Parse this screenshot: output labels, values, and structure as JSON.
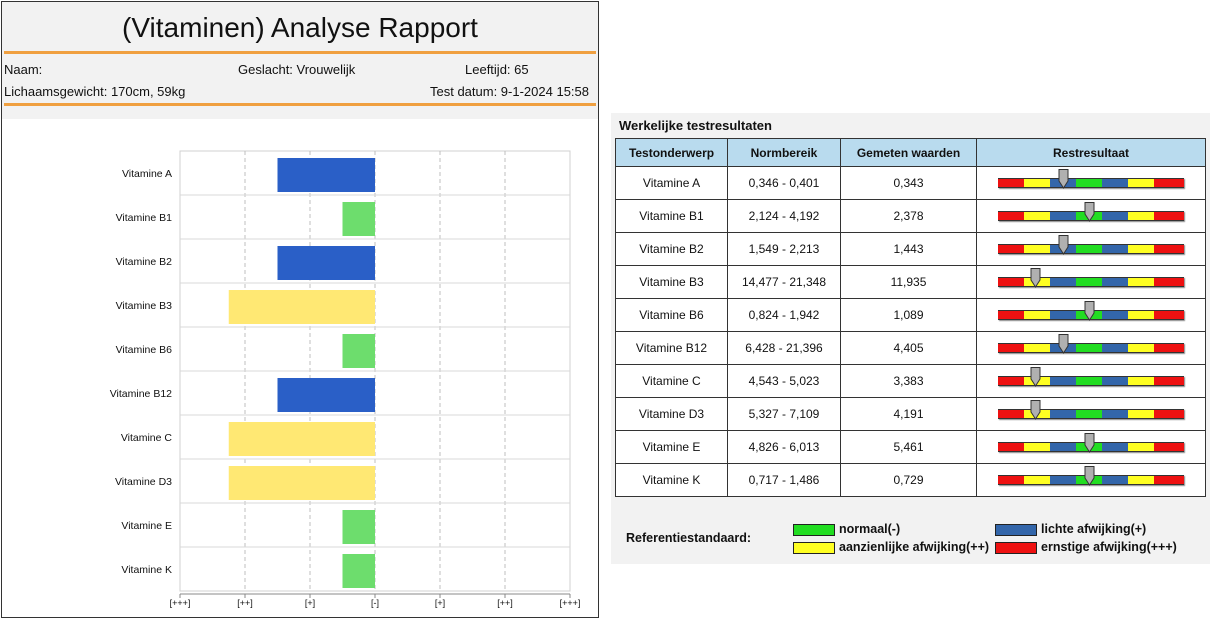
{
  "report": {
    "title": "(Vitaminen) Analyse Rapport",
    "name_label": "Naam:",
    "gender_label": "Geslacht: Vrouwelijk",
    "age_label": "Leeftijd: 65",
    "body_label": "Lichaamsgewicht: 170cm, 59kg",
    "test_date_label": "Test datum: 9-1-2024 15:58"
  },
  "colors": {
    "deviation_mild": "#2a5fc7",
    "normal": "#6ddd6d",
    "deviation_considerable": "#ffe873",
    "orange_rule": "#f0a040",
    "header_blue": "#b9dbee",
    "gauge_red": "#ee1111",
    "gauge_yellow": "#ffff22",
    "gauge_blue": "#3366aa",
    "gauge_green": "#22dd22"
  },
  "chart_data": {
    "type": "bar",
    "orientation": "horizontal",
    "categories": [
      "Vitamine A",
      "Vitamine B1",
      "Vitamine B2",
      "Vitamine B3",
      "Vitamine B6",
      "Vitamine B12",
      "Vitamine C",
      "Vitamine D3",
      "Vitamine E",
      "Vitamine K"
    ],
    "x_ticks": [
      "[+++]",
      "[++]",
      "[+]",
      "[-]",
      "[+]",
      "[++]",
      "[+++]"
    ],
    "xlim": [
      -3,
      3
    ],
    "values": [
      -1.5,
      -0.5,
      -1.5,
      -2.25,
      -0.5,
      -1.5,
      -2.25,
      -2.25,
      -0.5,
      -0.5
    ],
    "bar_levels": [
      "mild",
      "normal",
      "mild",
      "considerable",
      "normal",
      "mild",
      "considerable",
      "considerable",
      "normal",
      "normal"
    ],
    "grid": true
  },
  "results": {
    "title": "Werkelijke testresultaten",
    "headers": [
      "Testonderwerp",
      "Normbereik",
      "Gemeten waarden",
      "Restresultaat"
    ],
    "rows": [
      {
        "subject": "Vitamine A",
        "range": "0,346 - 0,401",
        "measured": "0,343",
        "marker": 0.35
      },
      {
        "subject": "Vitamine B1",
        "range": "2,124 - 4,192",
        "measured": "2,378",
        "marker": 0.49
      },
      {
        "subject": "Vitamine B2",
        "range": "1,549 - 2,213",
        "measured": "1,443",
        "marker": 0.35
      },
      {
        "subject": "Vitamine B3",
        "range": "14,477 - 21,348",
        "measured": "11,935",
        "marker": 0.2
      },
      {
        "subject": "Vitamine B6",
        "range": "0,824 - 1,942",
        "measured": "1,089",
        "marker": 0.49
      },
      {
        "subject": "Vitamine B12",
        "range": "6,428 - 21,396",
        "measured": "4,405",
        "marker": 0.35
      },
      {
        "subject": "Vitamine C",
        "range": "4,543 - 5,023",
        "measured": "3,383",
        "marker": 0.2
      },
      {
        "subject": "Vitamine D3",
        "range": "5,327 - 7,109",
        "measured": "4,191",
        "marker": 0.2
      },
      {
        "subject": "Vitamine E",
        "range": "4,826 - 6,013",
        "measured": "5,461",
        "marker": 0.49
      },
      {
        "subject": "Vitamine K",
        "range": "0,717 - 1,486",
        "measured": "0,729",
        "marker": 0.49
      }
    ]
  },
  "legend": {
    "title": "Referentiestandaard:",
    "normal": "normaal(-)",
    "mild": "lichte afwijking(+)",
    "considerable": "aanzienlijke afwijking(++)",
    "severe": "ernstige afwijking(+++)"
  }
}
